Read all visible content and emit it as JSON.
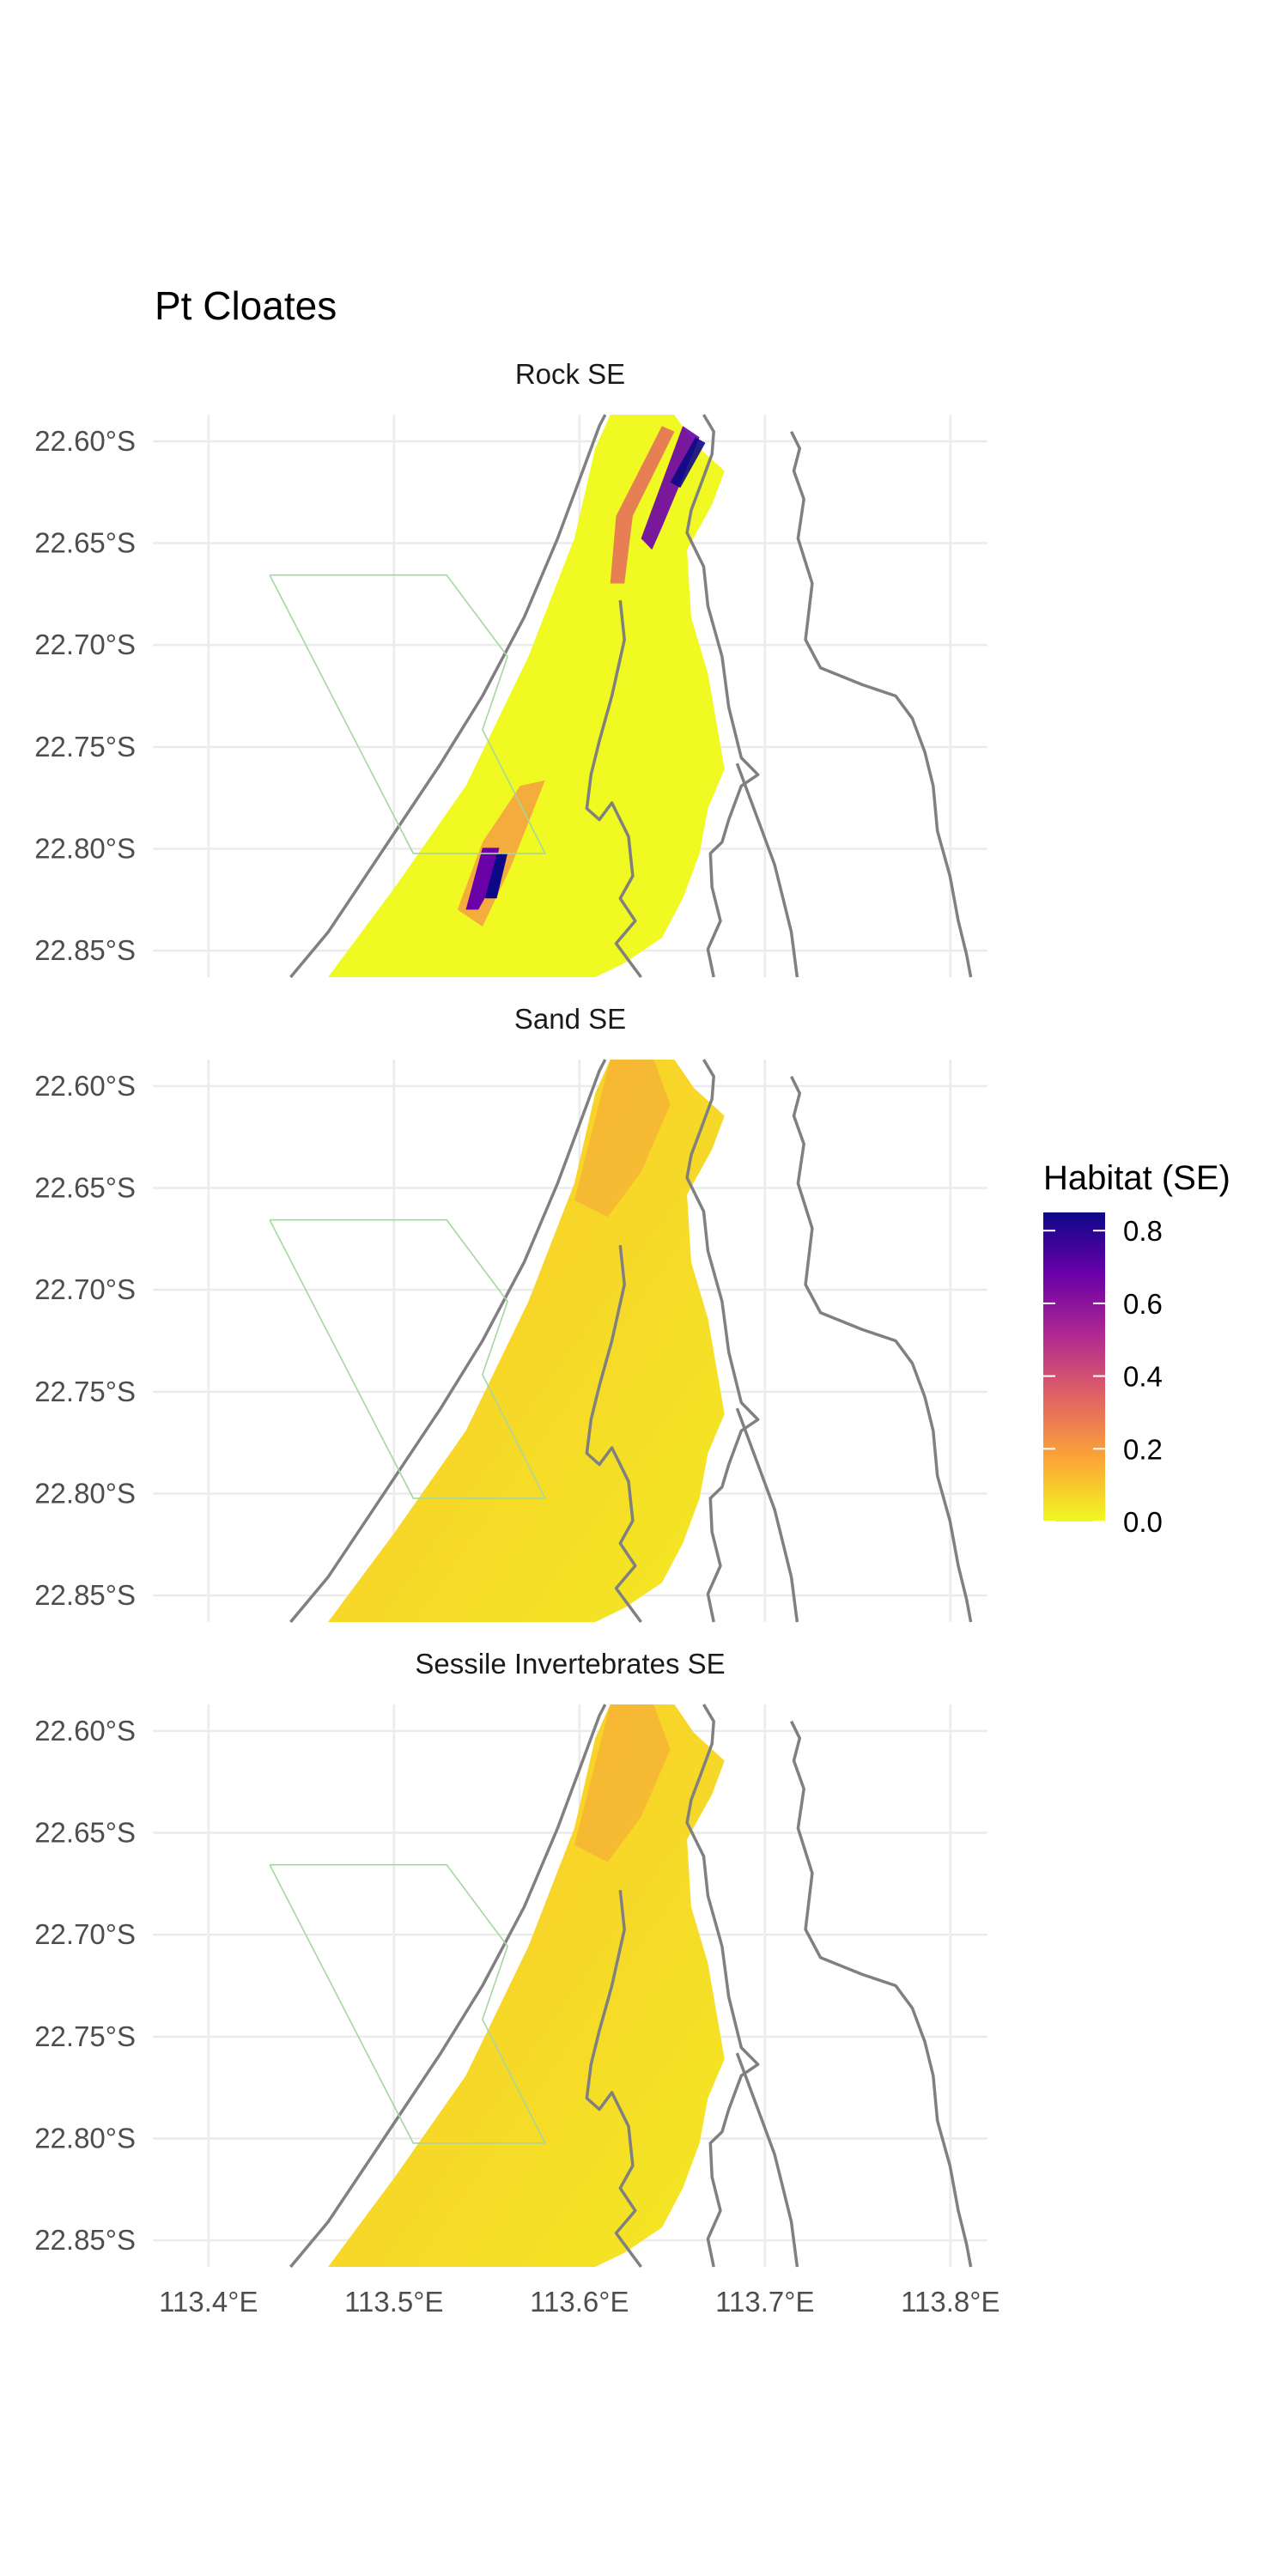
{
  "title": "Pt Cloates",
  "panels": [
    {
      "id": "rock",
      "strip": "Rock SE"
    },
    {
      "id": "sand",
      "strip": "Sand SE"
    },
    {
      "id": "sessile",
      "strip": "Sessile Invertebrates SE"
    }
  ],
  "axes": {
    "y_ticks": [
      "22.60°S",
      "22.65°S",
      "22.70°S",
      "22.75°S",
      "22.80°S",
      "22.85°S"
    ],
    "y_values": [
      -22.6,
      -22.65,
      -22.7,
      -22.75,
      -22.8,
      -22.85
    ],
    "x_ticks": [
      "113.4°E",
      "113.5°E",
      "113.6°E",
      "113.7°E",
      "113.8°E"
    ],
    "x_values": [
      113.4,
      113.5,
      113.6,
      113.7,
      113.8
    ],
    "xlim": [
      113.37,
      113.82
    ],
    "ylim": [
      -22.863,
      -22.587
    ]
  },
  "legend": {
    "title": "Habitat (SE)",
    "labels": [
      "0.8",
      "0.6",
      "0.4",
      "0.2",
      "0.0"
    ],
    "values": [
      0.8,
      0.6,
      0.4,
      0.2,
      0.0
    ],
    "range": [
      0.0,
      0.85
    ],
    "colors": [
      "#0d0887",
      "#6a00a8",
      "#b12a90",
      "#e16462",
      "#fca636",
      "#f0f921"
    ]
  },
  "colors": {
    "land_line": "#808080",
    "zone_line": "#a6d6a0",
    "grid": "#ebebeb",
    "low_se": "#f0f921",
    "high_se": "#0d0887"
  }
}
